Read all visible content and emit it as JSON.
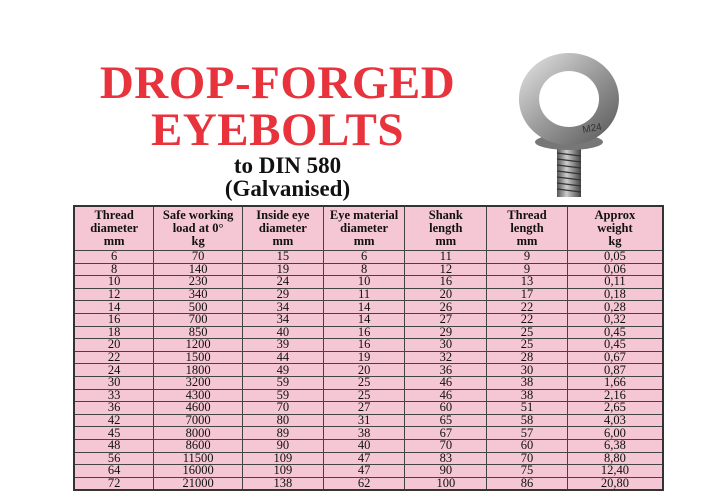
{
  "title": {
    "line1": "DROP-FORGED",
    "line2": "EYEBOLTS",
    "sub1": "to DIN 580",
    "sub2": "(Galvanised)"
  },
  "product_image": {
    "marking": "M24"
  },
  "colors": {
    "title_red": "#e8323c",
    "table_pink": "#f5c6d3"
  },
  "table": {
    "headers": [
      [
        "Thread",
        "diameter",
        "mm"
      ],
      [
        "Safe working",
        "load at 0°",
        "kg"
      ],
      [
        "Inside eye",
        "diameter",
        "mm"
      ],
      [
        "Eye material",
        "diameter",
        "mm"
      ],
      [
        "Shank",
        "length",
        "mm"
      ],
      [
        "Thread",
        "length",
        "mm"
      ],
      [
        "Approx",
        "weight",
        "kg"
      ]
    ],
    "rows": [
      [
        "6",
        "70",
        "15",
        "6",
        "11",
        "9",
        "0,05"
      ],
      [
        "8",
        "140",
        "19",
        "8",
        "12",
        "9",
        "0,06"
      ],
      [
        "10",
        "230",
        "24",
        "10",
        "16",
        "13",
        "0,11"
      ],
      [
        "12",
        "340",
        "29",
        "11",
        "20",
        "17",
        "0,18"
      ],
      [
        "14",
        "500",
        "34",
        "14",
        "26",
        "22",
        "0,28"
      ],
      [
        "16",
        "700",
        "34",
        "14",
        "27",
        "22",
        "0,32"
      ],
      [
        "18",
        "850",
        "40",
        "16",
        "29",
        "25",
        "0,45"
      ],
      [
        "20",
        "1200",
        "39",
        "16",
        "30",
        "25",
        "0,45"
      ],
      [
        "22",
        "1500",
        "44",
        "19",
        "32",
        "28",
        "0,67"
      ],
      [
        "24",
        "1800",
        "49",
        "20",
        "36",
        "30",
        "0,87"
      ],
      [
        "30",
        "3200",
        "59",
        "25",
        "46",
        "38",
        "1,66"
      ],
      [
        "33",
        "4300",
        "59",
        "25",
        "46",
        "38",
        "2,16"
      ],
      [
        "36",
        "4600",
        "70",
        "27",
        "60",
        "51",
        "2,65"
      ],
      [
        "42",
        "7000",
        "80",
        "31",
        "65",
        "58",
        "4,03"
      ],
      [
        "45",
        "8000",
        "89",
        "38",
        "67",
        "57",
        "6,00"
      ],
      [
        "48",
        "8600",
        "90",
        "40",
        "70",
        "60",
        "6,38"
      ],
      [
        "56",
        "11500",
        "109",
        "47",
        "83",
        "70",
        "8,80"
      ],
      [
        "64",
        "16000",
        "109",
        "47",
        "90",
        "75",
        "12,40"
      ],
      [
        "72",
        "21000",
        "138",
        "62",
        "100",
        "86",
        "20,80"
      ]
    ]
  }
}
